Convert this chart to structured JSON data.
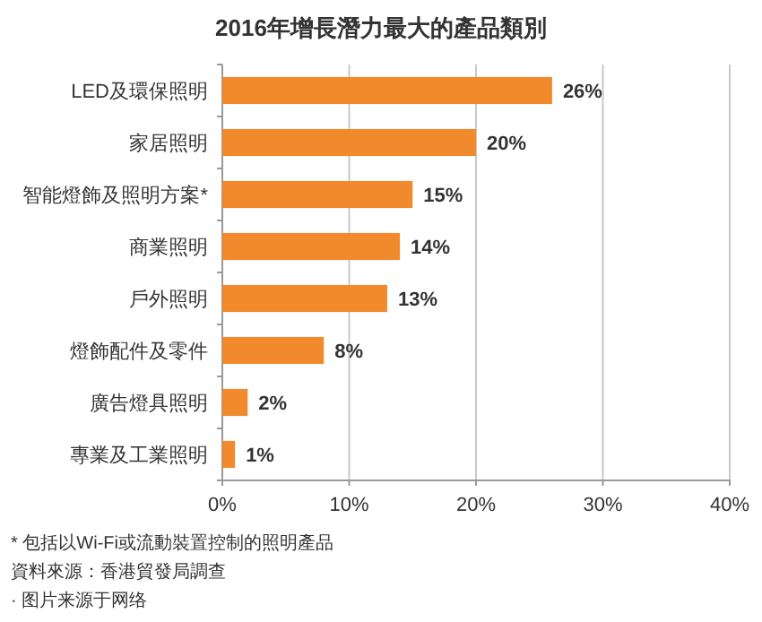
{
  "chart_data": {
    "type": "bar",
    "orientation": "horizontal",
    "title": "2016年增長潛力最大的產品類別",
    "categories": [
      "LED及環保照明",
      "家居照明",
      "智能燈飾及照明方案*",
      "商業照明",
      "戶外照明",
      "燈飾配件及零件",
      "廣告燈具照明",
      "專業及工業照明"
    ],
    "values": [
      26,
      20,
      15,
      14,
      13,
      8,
      2,
      1
    ],
    "value_labels": [
      "26%",
      "20%",
      "15%",
      "14%",
      "13%",
      "8%",
      "2%",
      "1%"
    ],
    "color": "#f08a2c",
    "xlim": [
      0,
      40
    ],
    "xticks": [
      {
        "value": 0,
        "label": "0%"
      },
      {
        "value": 10,
        "label": "10%"
      },
      {
        "value": 20,
        "label": "20%"
      },
      {
        "value": 30,
        "label": "30%"
      },
      {
        "value": 40,
        "label": "40%"
      }
    ],
    "grid": "x",
    "annotations": [
      "* 包括以Wi-Fi或流動裝置控制的照明產品",
      "資料來源：香港貿發局調查",
      "· 图片来源于网络"
    ]
  }
}
